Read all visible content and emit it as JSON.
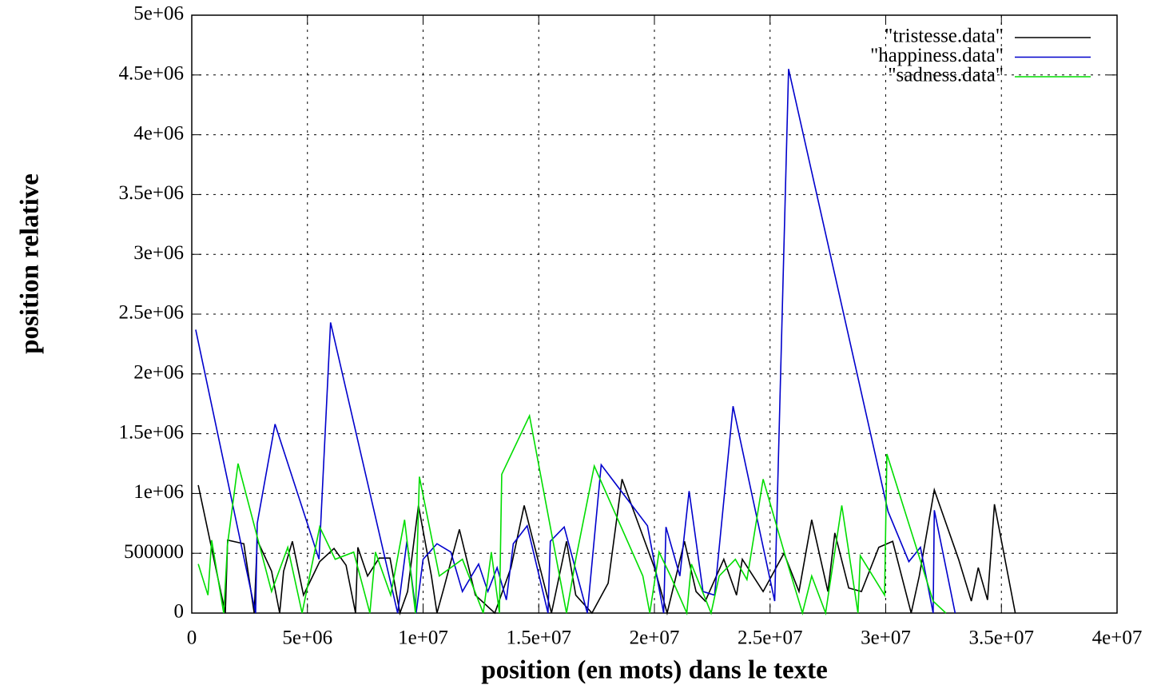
{
  "chart_data": {
    "type": "line",
    "xlabel": "position (en mots) dans le texte",
    "ylabel": "position relative",
    "xlim": [
      0,
      40000000
    ],
    "ylim": [
      0,
      5000000
    ],
    "xticks": [
      0,
      {
        "value": 5000000,
        "label": "5e+06"
      },
      {
        "value": 10000000,
        "label": "1e+07"
      },
      {
        "value": 15000000,
        "label": "1.5e+07"
      },
      {
        "value": 20000000,
        "label": "2e+07"
      },
      {
        "value": 25000000,
        "label": "2.5e+07"
      },
      {
        "value": 30000000,
        "label": "3e+07"
      },
      {
        "value": 35000000,
        "label": "3.5e+07"
      },
      {
        "value": 40000000,
        "label": "4e+07"
      }
    ],
    "yticks": [
      0,
      500000,
      {
        "value": 1000000,
        "label": "1e+06"
      },
      {
        "value": 1500000,
        "label": "1.5e+06"
      },
      {
        "value": 2000000,
        "label": "2e+06"
      },
      {
        "value": 2500000,
        "label": "2.5e+06"
      },
      {
        "value": 3000000,
        "label": "3e+06"
      },
      {
        "value": 3500000,
        "label": "3.5e+06"
      },
      {
        "value": 4000000,
        "label": "4e+06"
      },
      {
        "value": 4500000,
        "label": "4.5e+06"
      },
      {
        "value": 5000000,
        "label": "5e+06"
      }
    ],
    "grid": true,
    "legend": "top-right",
    "series": [
      {
        "name": "\"tristesse.data\"",
        "color": "#000000",
        "x": [
          280000,
          1450000,
          1550000,
          2250000,
          2700000,
          2830000,
          3450000,
          3800000,
          3970000,
          4350000,
          4830000,
          5530000,
          6150000,
          6670000,
          7080000,
          7180000,
          7600000,
          8100000,
          8570000,
          9000000,
          9330000,
          9800000,
          10360000,
          10600000,
          10900000,
          11570000,
          12260000,
          13100000,
          13800000,
          14370000,
          15550000,
          16200000,
          16600000,
          17300000,
          18000000,
          18600000,
          20000000,
          20550000,
          21300000,
          21800000,
          22200000,
          23000000,
          23550000,
          23800000,
          24700000,
          25600000,
          26250000,
          26800000,
          27500000,
          27800000,
          28400000,
          28950000,
          29700000,
          30300000,
          31100000,
          31450000,
          32100000,
          33150000,
          33700000,
          34000000,
          34400000,
          34700000,
          35600000
        ],
        "values": [
          1070000,
          0,
          610000,
          580000,
          0,
          610000,
          350000,
          0,
          350000,
          600000,
          150000,
          430000,
          540000,
          400000,
          0,
          550000,
          310000,
          460000,
          460000,
          0,
          180000,
          900000,
          310000,
          0,
          210000,
          700000,
          150000,
          0,
          380000,
          900000,
          0,
          600000,
          150000,
          0,
          250000,
          1120000,
          380000,
          0,
          600000,
          180000,
          100000,
          450000,
          150000,
          450000,
          180000,
          500000,
          180000,
          780000,
          180000,
          670000,
          210000,
          180000,
          550000,
          600000,
          0,
          310000,
          1030000,
          450000,
          100000,
          380000,
          110000,
          910000,
          0
        ]
      },
      {
        "name": "\"happiness.data\"",
        "color": "#0000cc",
        "x": [
          170000,
          2760000,
          2830000,
          3600000,
          5500000,
          6000000,
          8900000,
          9300000,
          9700000,
          10000000,
          10600000,
          11200000,
          11700000,
          12000000,
          12400000,
          12800000,
          13200000,
          13600000,
          13900000,
          14500000,
          15400000,
          15500000,
          16100000,
          17100000,
          17700000,
          19700000,
          20400000,
          20500000,
          21100000,
          21500000,
          22100000,
          22600000,
          23400000,
          25200000,
          25800000,
          30100000,
          31000000,
          31500000,
          32050000,
          32100000,
          33000000
        ],
        "values": [
          2370000,
          0,
          750000,
          1580000,
          450000,
          2430000,
          0,
          600000,
          0,
          450000,
          580000,
          510000,
          180000,
          280000,
          410000,
          180000,
          380000,
          110000,
          580000,
          730000,
          0,
          600000,
          720000,
          0,
          1240000,
          730000,
          0,
          720000,
          310000,
          1020000,
          180000,
          150000,
          1730000,
          100000,
          4550000,
          850000,
          430000,
          550000,
          0,
          860000,
          0
        ]
      },
      {
        "name": "\"sadness.data\"",
        "color": "#00dd00",
        "x": [
          280000,
          700000,
          860000,
          1380000,
          1550000,
          2000000,
          3450000,
          4150000,
          4770000,
          5530000,
          6200000,
          7000000,
          7700000,
          7940000,
          8600000,
          9200000,
          9670000,
          9840000,
          10700000,
          11700000,
          12600000,
          12950000,
          13300000,
          13400000,
          14600000,
          16200000,
          16600000,
          17400000,
          19500000,
          19800000,
          20200000,
          20700000,
          21400000,
          21600000,
          22450000,
          22800000,
          23500000,
          24000000,
          24700000,
          25700000,
          26400000,
          26800000,
          27400000,
          28100000,
          28800000,
          28900000,
          29950000,
          30050000,
          32050000,
          32600000
        ],
        "values": [
          410000,
          150000,
          610000,
          0,
          580000,
          1250000,
          180000,
          550000,
          0,
          720000,
          450000,
          510000,
          0,
          510000,
          150000,
          780000,
          0,
          1140000,
          310000,
          450000,
          0,
          510000,
          0,
          1160000,
          1650000,
          0,
          450000,
          1230000,
          310000,
          0,
          510000,
          310000,
          0,
          410000,
          0,
          310000,
          450000,
          280000,
          1120000,
          450000,
          0,
          310000,
          0,
          900000,
          0,
          480000,
          150000,
          1330000,
          100000,
          0
        ]
      }
    ]
  }
}
